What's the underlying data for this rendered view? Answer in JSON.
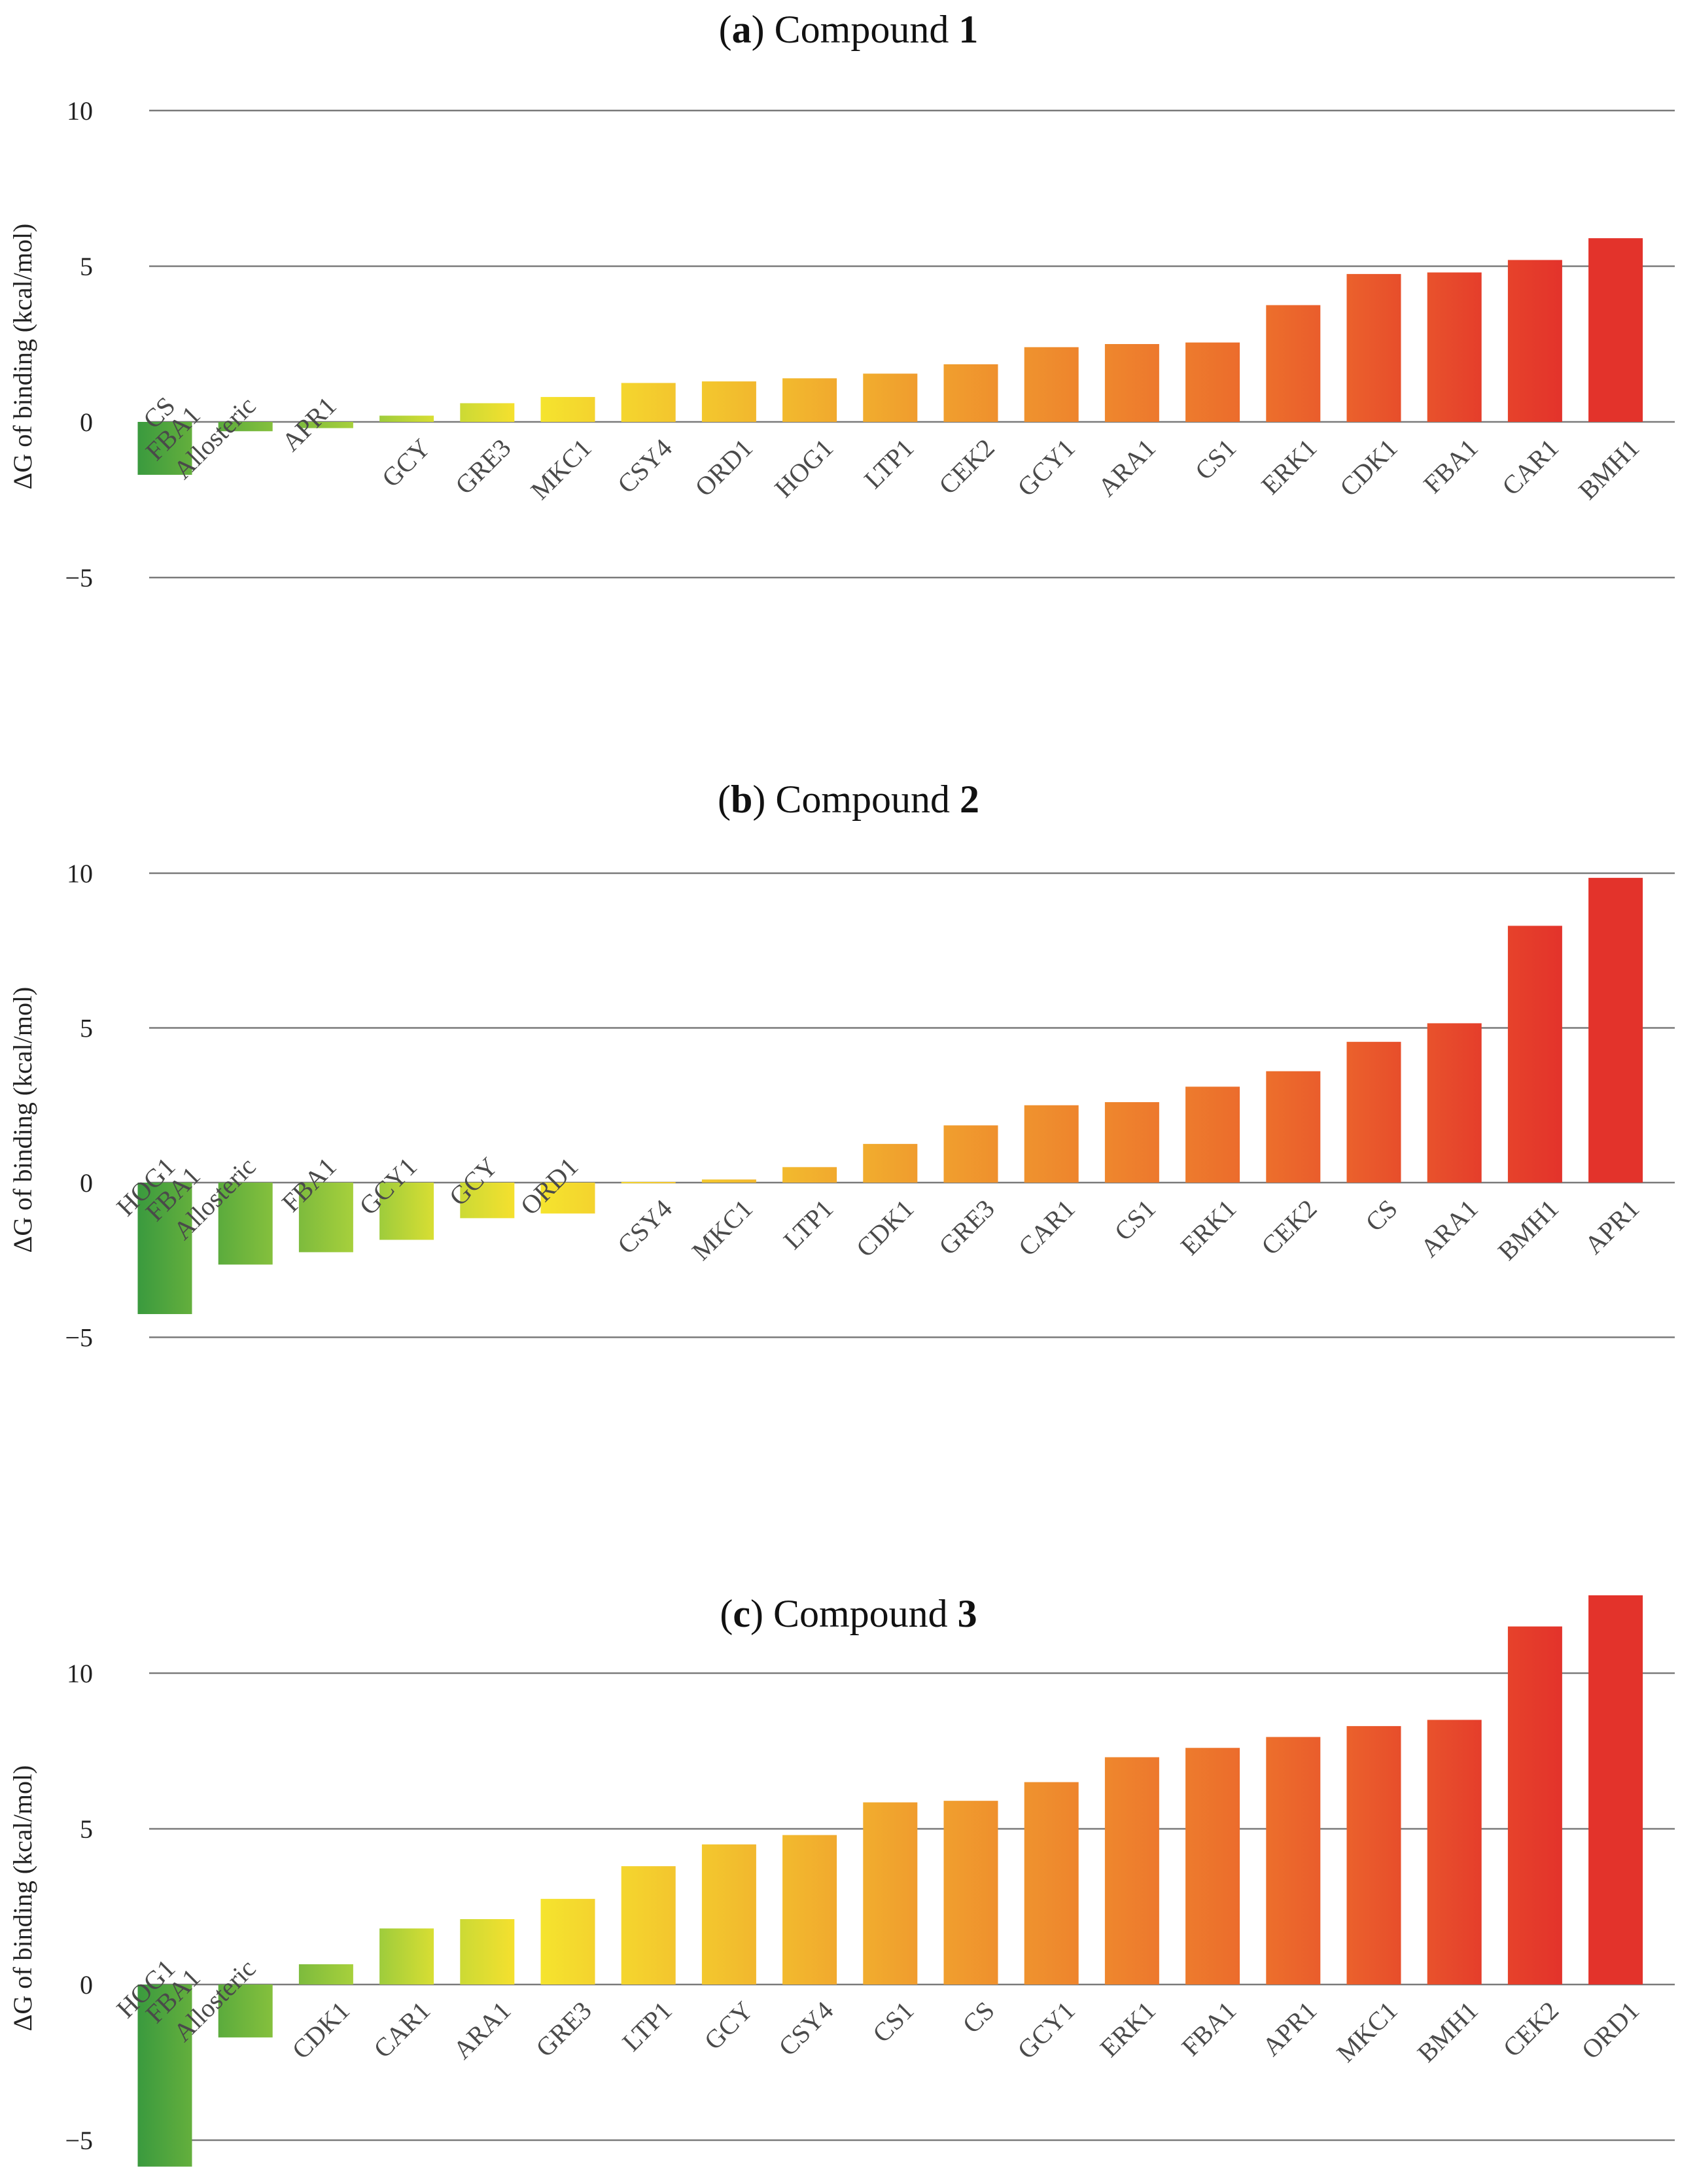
{
  "figure": {
    "y_axis_label": "ΔG of binding (kcal/mol)"
  },
  "chart_data": [
    {
      "type": "bar",
      "panel": "a",
      "title": "Compound 1",
      "title_prefix": "(",
      "title_letter": "a",
      "title_mid": ") Compound ",
      "title_number": "1",
      "ylabel": "ΔG of binding (kcal/mol)",
      "ylim": [
        -5,
        10
      ],
      "yticks": [
        10,
        5,
        0,
        -5
      ],
      "ytick_labels": [
        "10",
        "5",
        "0",
        "−5"
      ],
      "grid": true,
      "categories": [
        "CS",
        "FBA1 Allosteric",
        "APR1",
        "GCY",
        "GRE3",
        "MKC1",
        "CSY4",
        "ORD1",
        "HOG1",
        "LTP1",
        "CEK2",
        "GCY1",
        "ARA1",
        "CS1",
        "ERK1",
        "CDK1",
        "FBA1",
        "CAR1",
        "BMH1"
      ],
      "values": [
        -1.7,
        -0.3,
        -0.2,
        0.2,
        0.6,
        0.8,
        1.25,
        1.3,
        1.4,
        1.55,
        1.85,
        2.4,
        2.5,
        2.55,
        3.75,
        4.75,
        4.8,
        5.2,
        5.9
      ]
    },
    {
      "type": "bar",
      "panel": "b",
      "title": "Compound 2",
      "title_prefix": "(",
      "title_letter": "b",
      "title_mid": ") Compound ",
      "title_number": "2",
      "ylabel": "ΔG of binding (kcal/mol)",
      "ylim": [
        -5,
        10
      ],
      "yticks": [
        10,
        5,
        0,
        -5
      ],
      "ytick_labels": [
        "10",
        "5",
        "0",
        "−5"
      ],
      "grid": true,
      "categories": [
        "HOG1",
        "FBA1 Allosteric",
        "FBA1",
        "GCY1",
        "GCY",
        "ORD1",
        "CSY4",
        "MKC1",
        "LTP1",
        "CDK1",
        "GRE3",
        "CAR1",
        "CS1",
        "ERK1",
        "CEK2",
        "CS",
        "ARA1",
        "BMH1",
        "APR1"
      ],
      "values": [
        -4.25,
        -2.65,
        -2.25,
        -1.85,
        -1.15,
        -1.0,
        0.02,
        0.1,
        0.5,
        1.25,
        1.85,
        2.5,
        2.6,
        3.1,
        3.6,
        4.55,
        5.15,
        8.3,
        9.85
      ]
    },
    {
      "type": "bar",
      "panel": "c",
      "title": "Compound 3",
      "title_prefix": "(",
      "title_letter": "c",
      "title_mid": ") Compound ",
      "title_number": "3",
      "ylabel": "ΔG of binding (kcal/mol)",
      "ylim": [
        -5.8,
        12.5
      ],
      "yticks": [
        10,
        5,
        0,
        -5
      ],
      "ytick_labels": [
        "10",
        "5",
        "0",
        "−5"
      ],
      "grid": true,
      "categories": [
        "HOG1",
        "FBA1 Allosteric",
        "CDK1",
        "CAR1",
        "ARA1",
        "GRE3",
        "LTP1",
        "GCY",
        "CSY4",
        "CS1",
        "CS",
        "GCY1",
        "ERK1",
        "FBA1",
        "APR1",
        "MKC1",
        "BMH1",
        "CEK2",
        "ORD1"
      ],
      "values": [
        -5.85,
        -1.7,
        0.65,
        1.8,
        2.1,
        2.75,
        3.8,
        4.5,
        4.8,
        5.85,
        5.9,
        6.5,
        7.3,
        7.6,
        7.95,
        8.3,
        8.5,
        11.5,
        12.5
      ]
    }
  ]
}
